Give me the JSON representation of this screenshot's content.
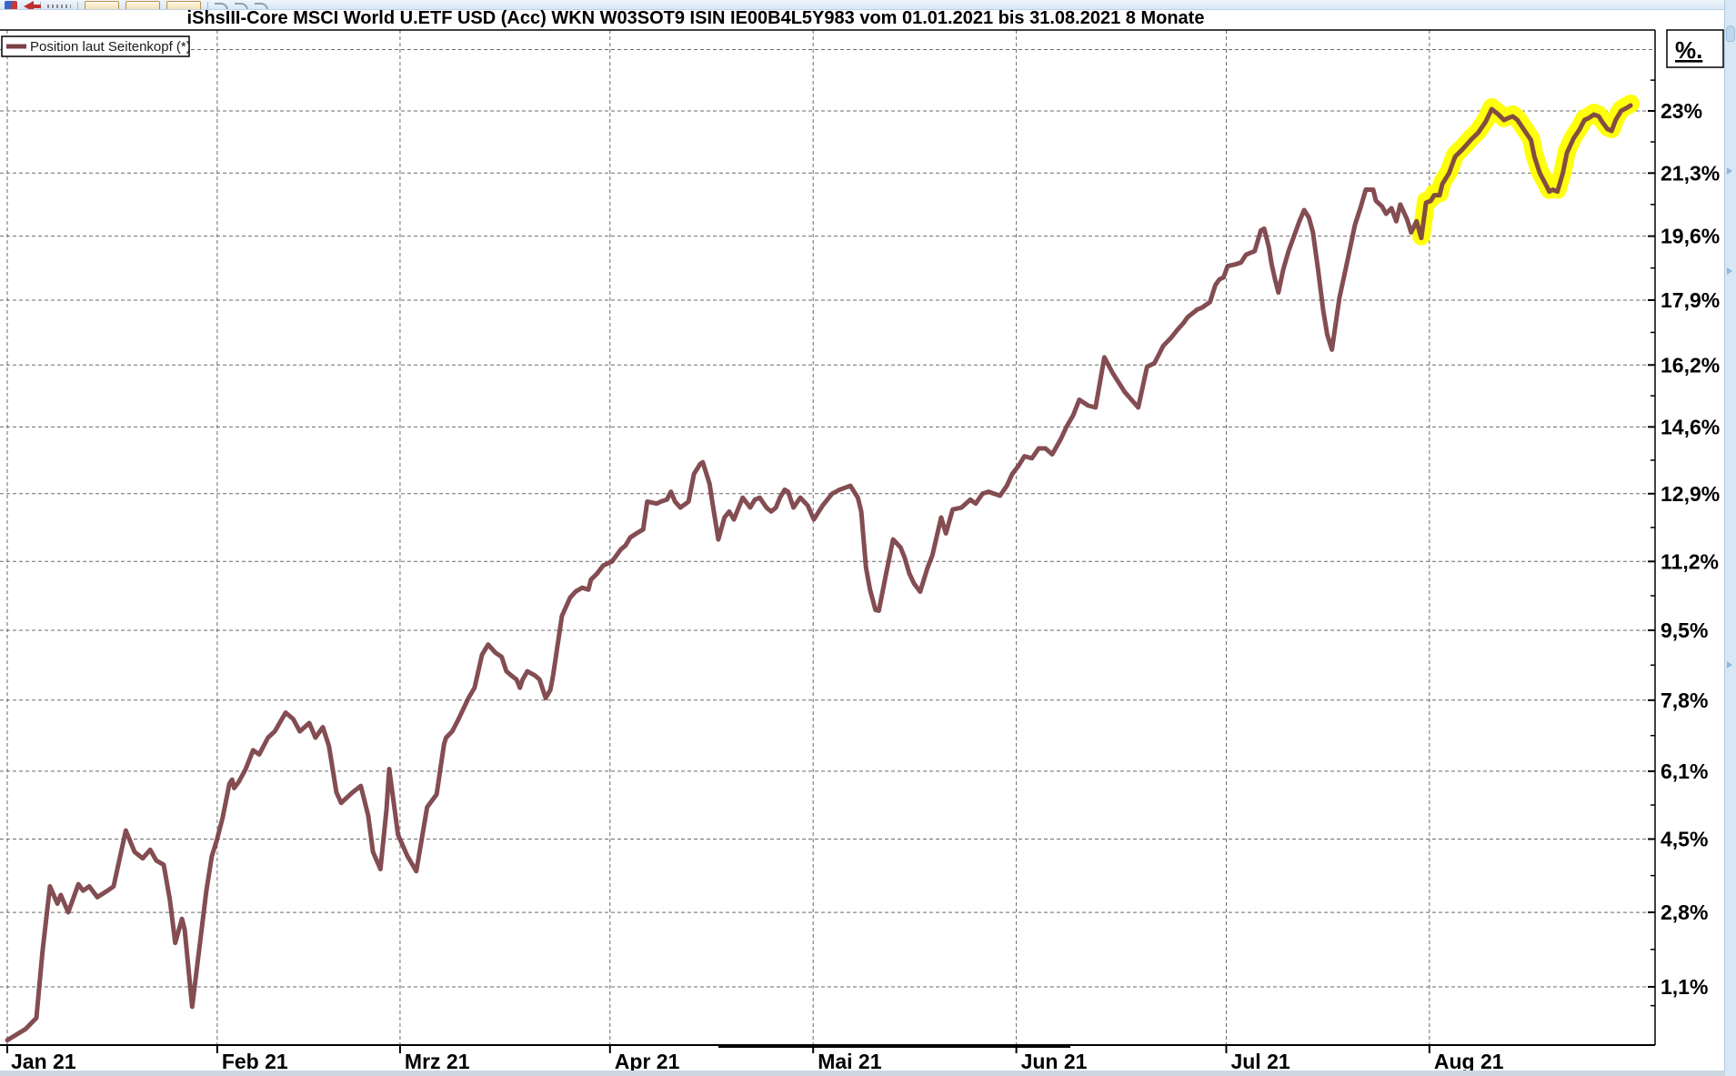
{
  "header": {
    "title": "iShsIII-Core MSCI World U.ETF USD (Acc) WKN W03SOT9 ISIN IE00B4L5Y983 vom 01.01.2021 bis 31.08.2021 8 Monate"
  },
  "legend": {
    "label": "Position laut Seitenkopf (*)",
    "swatch_color": "#7a3f45"
  },
  "toolbar": {
    "items": [
      {
        "name": "app-icon",
        "type": "glyph",
        "interactable": "false"
      },
      {
        "name": "back-arrow-icon",
        "type": "arrow",
        "interactable": "true"
      },
      {
        "name": "toolbar-separator",
        "type": "sep",
        "interactable": "false"
      },
      {
        "name": "dots-icon",
        "type": "dots",
        "interactable": "false"
      },
      {
        "name": "toolbar-separator",
        "type": "sep",
        "interactable": "false"
      },
      {
        "name": "chart-tool-button",
        "type": "btn",
        "interactable": "true"
      },
      {
        "name": "chart-tool-button",
        "type": "btn",
        "interactable": "true"
      },
      {
        "name": "chart-tool-button",
        "type": "btn",
        "interactable": "true"
      },
      {
        "name": "toolbar-separator",
        "type": "sep",
        "interactable": "false"
      },
      {
        "name": "history-arrow-icon",
        "type": "curve",
        "interactable": "true"
      },
      {
        "name": "history-arrow-icon",
        "type": "curve",
        "interactable": "true"
      },
      {
        "name": "history-arrow-icon",
        "type": "curve",
        "interactable": "true"
      }
    ]
  },
  "colors": {
    "line": "#7a3f45",
    "highlight": "#ffff00",
    "grid": "#6b6b6b",
    "frame": "#000000"
  },
  "chart_data": {
    "type": "line",
    "title": "iShsIII-Core MSCI World U.ETF USD (Acc) performance 01.01.2021 - 31.08.2021",
    "y_scale": "logarithmic performance axis",
    "grid": true,
    "legend_position": "top-left",
    "y_axis": {
      "unit_label": "%.",
      "tick_labels": [
        "23%",
        "21,3%",
        "19,6%",
        "17,9%",
        "16,2%",
        "14,6%",
        "12,9%",
        "11,2%",
        "9,5%",
        "7,8%",
        "6,1%",
        "4,5%",
        "2,8%",
        "1,1%"
      ],
      "tick_values": [
        23,
        21.3,
        19.6,
        17.9,
        16.2,
        14.6,
        12.9,
        11.2,
        9.5,
        7.8,
        6.1,
        4.5,
        2.8,
        1.1
      ],
      "extra_gridline_values": [
        24.7
      ],
      "range_pct": [
        -0.2,
        25.2
      ]
    },
    "x_axis": {
      "tick_labels": [
        "Jan 21",
        "Feb 21",
        "Mrz 21",
        "Apr 21",
        "Mai 21",
        "Jun 21",
        "Jul 21",
        "Aug 21"
      ],
      "tick_days": [
        1,
        32,
        59,
        90,
        120,
        150,
        181,
        211
      ],
      "domain_days": [
        1,
        244
      ]
    },
    "highlight": {
      "note": "yellow marker over August section",
      "color": "#ffff00",
      "start_day": 209.4,
      "end_day": 240.7,
      "stroke_width": 20
    },
    "series": [
      {
        "name": "Position laut Seitenkopf (*)",
        "color": "#7a3f45",
        "stroke_width": 5,
        "points": [
          [
            1,
            -0.1
          ],
          [
            3.7,
            0.15
          ],
          [
            5.3,
            0.4
          ],
          [
            6.2,
            1.9
          ],
          [
            7.3,
            3.4
          ],
          [
            8.4,
            3.0
          ],
          [
            8.9,
            3.2
          ],
          [
            10,
            2.8
          ],
          [
            11.5,
            3.45
          ],
          [
            12.2,
            3.3
          ],
          [
            13.1,
            3.4
          ],
          [
            14.3,
            3.15
          ],
          [
            15.8,
            3.3
          ],
          [
            16.7,
            3.4
          ],
          [
            18.5,
            4.7
          ],
          [
            19.8,
            4.2
          ],
          [
            21,
            4.05
          ],
          [
            22.1,
            4.25
          ],
          [
            23,
            4.0
          ],
          [
            24.1,
            3.9
          ],
          [
            25,
            3.1
          ],
          [
            25.4,
            2.6
          ],
          [
            25.8,
            2.1
          ],
          [
            26.8,
            2.65
          ],
          [
            27.2,
            2.4
          ],
          [
            28.3,
            0.65
          ],
          [
            29.3,
            1.9
          ],
          [
            30.4,
            3.3
          ],
          [
            31.2,
            4.1
          ],
          [
            31.9,
            4.45
          ],
          [
            32.8,
            5.0
          ],
          [
            33.8,
            5.8
          ],
          [
            34.2,
            5.9
          ],
          [
            34.5,
            5.7
          ],
          [
            35.2,
            5.85
          ],
          [
            36.2,
            6.15
          ],
          [
            37.3,
            6.6
          ],
          [
            38.2,
            6.5
          ],
          [
            39.5,
            6.9
          ],
          [
            40.5,
            7.05
          ],
          [
            42.1,
            7.5
          ],
          [
            43.2,
            7.35
          ],
          [
            44.2,
            7.05
          ],
          [
            45.6,
            7.25
          ],
          [
            46.5,
            6.9
          ],
          [
            47.6,
            7.15
          ],
          [
            48.5,
            6.7
          ],
          [
            49.6,
            5.6
          ],
          [
            50.3,
            5.35
          ],
          [
            52,
            5.6
          ],
          [
            53.2,
            5.75
          ],
          [
            54.3,
            5.05
          ],
          [
            55,
            4.2
          ],
          [
            56.1,
            3.8
          ],
          [
            57,
            5.2
          ],
          [
            57.4,
            6.15
          ],
          [
            58.7,
            4.6
          ],
          [
            60.1,
            4.1
          ],
          [
            61.4,
            3.75
          ],
          [
            63,
            5.25
          ],
          [
            64.4,
            5.55
          ],
          [
            65.5,
            6.75
          ],
          [
            65.8,
            6.9
          ],
          [
            66.7,
            7.05
          ],
          [
            67.5,
            7.3
          ],
          [
            69.1,
            7.85
          ],
          [
            70,
            8.1
          ],
          [
            71.1,
            8.9
          ],
          [
            72,
            9.15
          ],
          [
            73.1,
            8.95
          ],
          [
            74,
            8.85
          ],
          [
            74.7,
            8.5
          ],
          [
            75.4,
            8.4
          ],
          [
            76.2,
            8.3
          ],
          [
            76.7,
            8.1
          ],
          [
            77.1,
            8.3
          ],
          [
            77.8,
            8.5
          ],
          [
            78.9,
            8.4
          ],
          [
            79.6,
            8.3
          ],
          [
            80.5,
            7.85
          ],
          [
            81.2,
            8.05
          ],
          [
            81.6,
            8.4
          ],
          [
            82.9,
            9.85
          ],
          [
            84.1,
            10.3
          ],
          [
            84.9,
            10.45
          ],
          [
            85.9,
            10.55
          ],
          [
            86.8,
            10.5
          ],
          [
            87.2,
            10.75
          ],
          [
            88.1,
            10.9
          ],
          [
            89,
            11.1
          ],
          [
            90.3,
            11.2
          ],
          [
            91.6,
            11.5
          ],
          [
            92.3,
            11.6
          ],
          [
            93,
            11.8
          ],
          [
            93.9,
            11.9
          ],
          [
            94.9,
            12.0
          ],
          [
            95.5,
            12.7
          ],
          [
            96.9,
            12.65
          ],
          [
            97.5,
            12.7
          ],
          [
            98.4,
            12.75
          ],
          [
            99,
            12.95
          ],
          [
            99.6,
            12.7
          ],
          [
            100.4,
            12.55
          ],
          [
            101.6,
            12.7
          ],
          [
            102.4,
            13.4
          ],
          [
            103.3,
            13.65
          ],
          [
            103.7,
            13.7
          ],
          [
            104.7,
            13.15
          ],
          [
            105.1,
            12.7
          ],
          [
            106,
            11.75
          ],
          [
            106.9,
            12.3
          ],
          [
            107.6,
            12.45
          ],
          [
            108.3,
            12.25
          ],
          [
            109,
            12.55
          ],
          [
            109.6,
            12.8
          ],
          [
            110.7,
            12.55
          ],
          [
            111.4,
            12.75
          ],
          [
            112.1,
            12.8
          ],
          [
            113.1,
            12.55
          ],
          [
            113.8,
            12.45
          ],
          [
            114.5,
            12.55
          ],
          [
            115.1,
            12.8
          ],
          [
            115.8,
            13.0
          ],
          [
            116.3,
            12.95
          ],
          [
            117.1,
            12.55
          ],
          [
            118.1,
            12.8
          ],
          [
            119.2,
            12.6
          ],
          [
            120.1,
            12.25
          ],
          [
            121.4,
            12.6
          ],
          [
            122.8,
            12.9
          ],
          [
            123.9,
            13.0
          ],
          [
            125.5,
            13.1
          ],
          [
            126.6,
            12.8
          ],
          [
            127.1,
            12.45
          ],
          [
            127.8,
            11.05
          ],
          [
            128.4,
            10.5
          ],
          [
            129.2,
            10.0
          ],
          [
            129.7,
            9.98
          ],
          [
            130.6,
            10.75
          ],
          [
            131.8,
            11.75
          ],
          [
            132.9,
            11.55
          ],
          [
            133.5,
            11.3
          ],
          [
            134.2,
            10.9
          ],
          [
            134.9,
            10.65
          ],
          [
            135.8,
            10.45
          ],
          [
            136.9,
            11.05
          ],
          [
            137.6,
            11.35
          ],
          [
            138.9,
            12.3
          ],
          [
            139.6,
            11.9
          ],
          [
            140.6,
            12.5
          ],
          [
            141.9,
            12.55
          ],
          [
            143.2,
            12.75
          ],
          [
            144,
            12.65
          ],
          [
            145,
            12.9
          ],
          [
            145.9,
            12.95
          ],
          [
            146.7,
            12.9
          ],
          [
            147.6,
            12.85
          ],
          [
            148.6,
            13.1
          ],
          [
            149.4,
            13.4
          ],
          [
            150.3,
            13.6
          ],
          [
            151.2,
            13.85
          ],
          [
            152.3,
            13.8
          ],
          [
            153.3,
            14.05
          ],
          [
            154.3,
            14.05
          ],
          [
            155.3,
            13.9
          ],
          [
            156.6,
            14.3
          ],
          [
            157.4,
            14.6
          ],
          [
            158.4,
            14.9
          ],
          [
            159.3,
            15.3
          ],
          [
            160.6,
            15.15
          ],
          [
            161.7,
            15.1
          ],
          [
            163,
            16.4
          ],
          [
            164.2,
            16.0
          ],
          [
            166,
            15.5
          ],
          [
            168,
            15.1
          ],
          [
            169.3,
            16.15
          ],
          [
            170.4,
            16.25
          ],
          [
            171.7,
            16.7
          ],
          [
            172.8,
            16.9
          ],
          [
            173.7,
            17.1
          ],
          [
            174.7,
            17.3
          ],
          [
            175.3,
            17.45
          ],
          [
            176,
            17.55
          ],
          [
            176.7,
            17.65
          ],
          [
            177.4,
            17.7
          ],
          [
            178.6,
            17.85
          ],
          [
            179.4,
            18.3
          ],
          [
            180,
            18.45
          ],
          [
            180.6,
            18.5
          ],
          [
            181.2,
            18.8
          ],
          [
            182.4,
            18.85
          ],
          [
            183.2,
            18.9
          ],
          [
            183.9,
            19.1
          ],
          [
            184.5,
            19.15
          ],
          [
            185.2,
            19.2
          ],
          [
            186.1,
            19.75
          ],
          [
            186.6,
            19.8
          ],
          [
            187.3,
            19.3
          ],
          [
            187.7,
            18.85
          ],
          [
            188.2,
            18.45
          ],
          [
            188.7,
            18.1
          ],
          [
            189.4,
            18.7
          ],
          [
            190.2,
            19.2
          ],
          [
            191.1,
            19.65
          ],
          [
            191.8,
            20.0
          ],
          [
            192.5,
            20.3
          ],
          [
            193.2,
            20.1
          ],
          [
            193.8,
            19.7
          ],
          [
            194.6,
            18.65
          ],
          [
            195.3,
            17.65
          ],
          [
            195.9,
            17.0
          ],
          [
            196.6,
            16.6
          ],
          [
            197.7,
            17.95
          ],
          [
            198.9,
            18.95
          ],
          [
            200,
            19.9
          ],
          [
            200.8,
            20.35
          ],
          [
            201.6,
            20.85
          ],
          [
            202.7,
            20.85
          ],
          [
            203.1,
            20.55
          ],
          [
            204,
            20.4
          ],
          [
            204.6,
            20.2
          ],
          [
            205.4,
            20.35
          ],
          [
            206.1,
            20.0
          ],
          [
            206.7,
            20.45
          ],
          [
            207.7,
            20.05
          ],
          [
            208.3,
            19.7
          ],
          [
            209.1,
            20.0
          ],
          [
            209.8,
            19.55
          ],
          [
            210.5,
            20.5
          ],
          [
            211.2,
            20.55
          ],
          [
            211.7,
            20.7
          ],
          [
            212.5,
            20.7
          ],
          [
            212.9,
            21.0
          ],
          [
            213.9,
            21.3
          ],
          [
            214.8,
            21.75
          ],
          [
            215.9,
            21.95
          ],
          [
            217.1,
            22.2
          ],
          [
            218.2,
            22.4
          ],
          [
            219.3,
            22.7
          ],
          [
            220.2,
            23.05
          ],
          [
            221.2,
            22.9
          ],
          [
            222,
            22.75
          ],
          [
            222.6,
            22.8
          ],
          [
            223.3,
            22.85
          ],
          [
            224,
            22.75
          ],
          [
            224.9,
            22.5
          ],
          [
            226,
            22.2
          ],
          [
            226.5,
            21.75
          ],
          [
            227.3,
            21.3
          ],
          [
            228.3,
            20.95
          ],
          [
            228.7,
            20.8
          ],
          [
            229.2,
            20.85
          ],
          [
            229.9,
            20.8
          ],
          [
            230.7,
            21.3
          ],
          [
            231.3,
            21.85
          ],
          [
            232.3,
            22.25
          ],
          [
            233.2,
            22.5
          ],
          [
            233.9,
            22.75
          ],
          [
            234.5,
            22.8
          ],
          [
            235.3,
            22.9
          ],
          [
            236,
            22.85
          ],
          [
            236.5,
            22.7
          ],
          [
            237.3,
            22.5
          ],
          [
            237.9,
            22.45
          ],
          [
            238.5,
            22.75
          ],
          [
            239.3,
            23.0
          ],
          [
            240.3,
            23.1
          ],
          [
            240.7,
            23.15
          ]
        ]
      }
    ]
  }
}
